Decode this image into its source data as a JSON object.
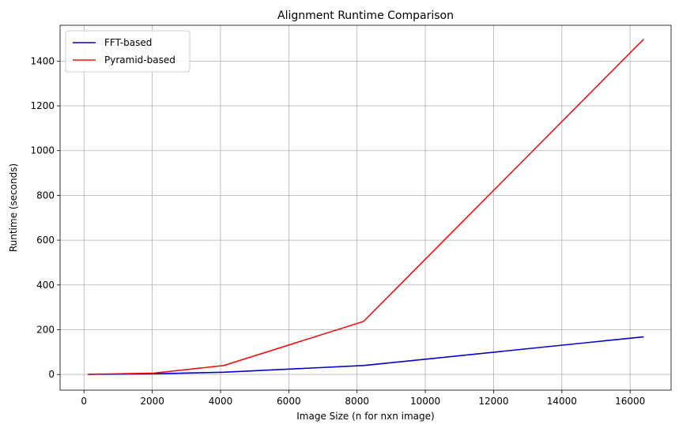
{
  "chart_data": {
    "type": "line",
    "title": "Alignment Runtime Comparison",
    "xlabel": "Image Size (n for nxn image)",
    "ylabel": "Runtime (seconds)",
    "xlim": [
      -700,
      17200
    ],
    "ylim": [
      -70,
      1560
    ],
    "xticks": [
      0,
      2000,
      4000,
      6000,
      8000,
      10000,
      12000,
      14000,
      16000
    ],
    "yticks": [
      0,
      200,
      400,
      600,
      800,
      1000,
      1200,
      1400
    ],
    "grid": true,
    "legend_position": "top-left",
    "x": [
      128,
      2048,
      4096,
      8192,
      16384
    ],
    "series": [
      {
        "name": "FFT-based",
        "color": "#0000cc",
        "values": [
          0.5,
          3,
          10,
          40,
          168
        ]
      },
      {
        "name": "Pyramid-based",
        "color": "#ee1111",
        "values": [
          1,
          6,
          40,
          237,
          1496
        ]
      }
    ]
  }
}
